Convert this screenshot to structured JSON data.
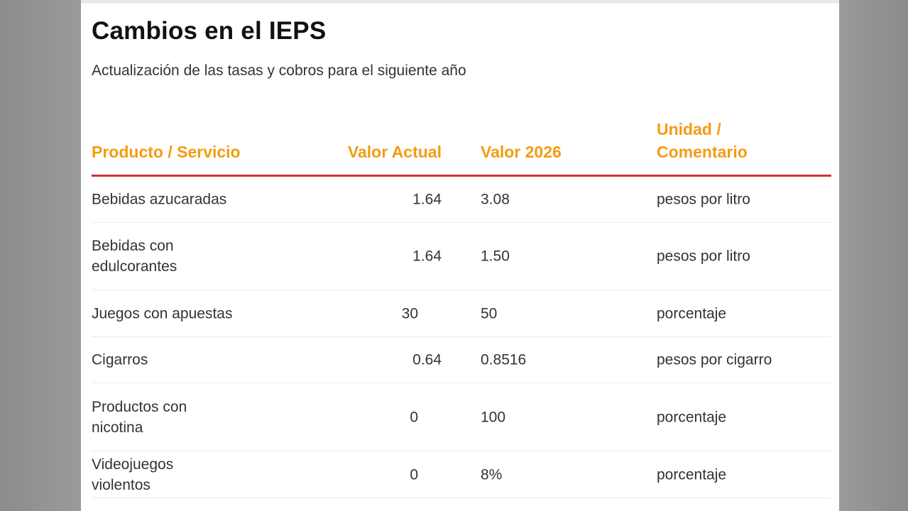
{
  "card": {
    "title": "Cambios en el IEPS",
    "subtitle": "Actualización de las tasas y cobros para el siguiente año"
  },
  "table": {
    "headers": {
      "product": "Producto / Servicio",
      "current": "Valor Actual",
      "next": "Valor 2026",
      "unit_line1": "Unidad /",
      "unit_line2": "Comentario"
    },
    "rows": [
      {
        "product": "Bebidas azucaradas",
        "current": "1.64",
        "next": "3.08",
        "unit": "pesos por litro"
      },
      {
        "product": "Bebidas con edulcorantes",
        "current": "1.64",
        "next": "1.50",
        "unit": "pesos por litro"
      },
      {
        "product": "Juegos con apuestas",
        "current": "30",
        "next": "50",
        "unit": "porcentaje"
      },
      {
        "product": "Cigarros",
        "current": "0.64",
        "next": "0.8516",
        "unit": "pesos por cigarro"
      },
      {
        "product": "Productos con nicotina",
        "current": "0",
        "next": "100",
        "unit": "porcentaje"
      },
      {
        "product": "Videojuegos violentos",
        "current": "0",
        "next": "8%",
        "unit": "porcentaje"
      }
    ]
  },
  "colors": {
    "header_text": "#f39c12",
    "header_rule": "#d32f2f",
    "body_text": "#333333",
    "title_text": "#111111"
  }
}
